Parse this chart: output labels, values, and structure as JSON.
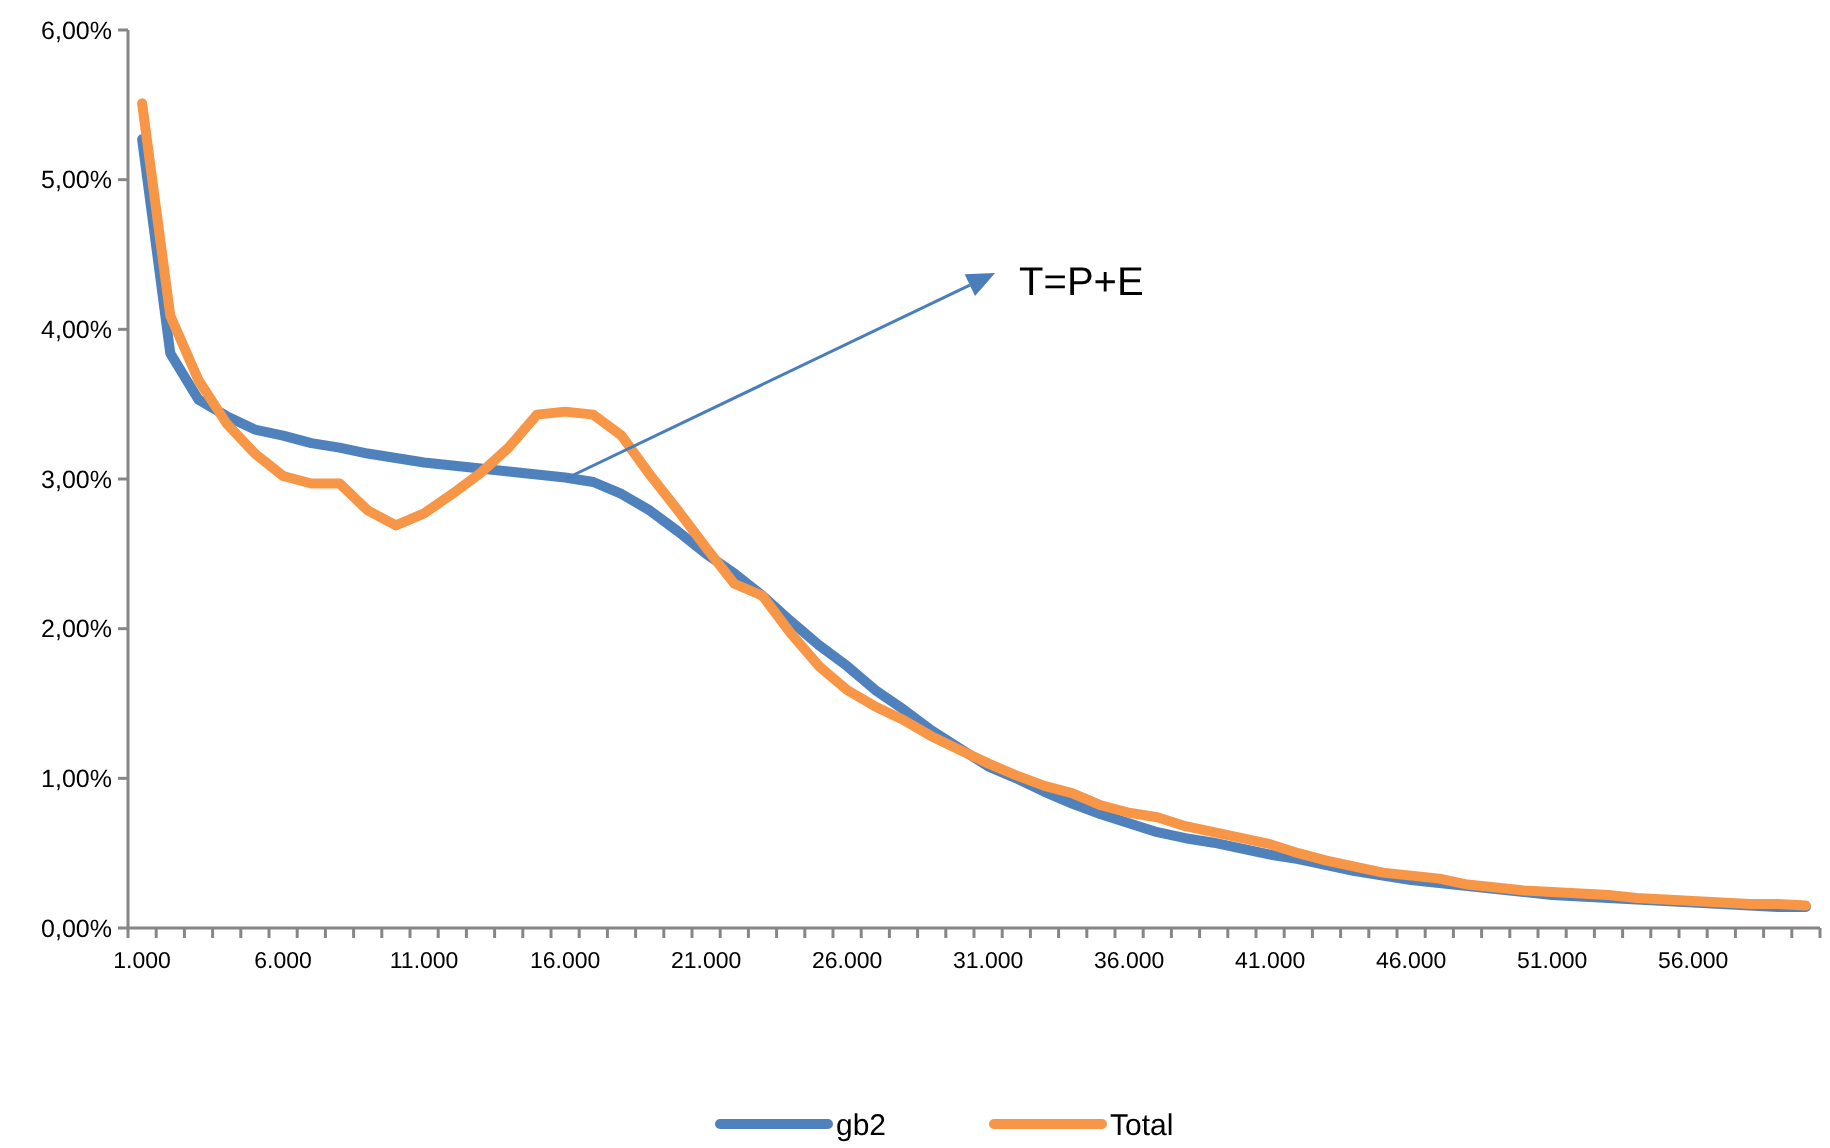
{
  "chart_data": {
    "type": "line",
    "categories": [
      "1.000",
      null,
      null,
      null,
      null,
      "6.000",
      null,
      null,
      null,
      null,
      "11.000",
      null,
      null,
      null,
      null,
      "16.000",
      null,
      null,
      null,
      null,
      "21.000",
      null,
      null,
      null,
      null,
      "26.000",
      null,
      null,
      null,
      null,
      "31.000",
      null,
      null,
      null,
      null,
      "36.000",
      null,
      null,
      null,
      null,
      "41.000",
      null,
      null,
      null,
      null,
      "46.000",
      null,
      null,
      null,
      null,
      "51.000",
      null,
      null,
      null,
      null,
      "56.000",
      null,
      null,
      null,
      null
    ],
    "series": [
      {
        "name": "gb2",
        "color": "#4f81bd",
        "values": [
          5.27,
          3.84,
          3.53,
          3.42,
          3.33,
          3.29,
          3.24,
          3.21,
          3.17,
          3.14,
          3.11,
          3.09,
          3.07,
          3.05,
          3.03,
          3.01,
          2.98,
          2.9,
          2.79,
          2.65,
          2.5,
          2.37,
          2.22,
          2.05,
          1.89,
          1.75,
          1.59,
          1.46,
          1.32,
          1.2,
          1.08,
          1.0,
          0.91,
          0.83,
          0.76,
          0.7,
          0.64,
          0.6,
          0.57,
          0.53,
          0.49,
          0.46,
          0.42,
          0.38,
          0.35,
          0.32,
          0.3,
          0.28,
          0.26,
          0.24,
          0.22,
          0.21,
          0.2,
          0.19,
          0.18,
          0.17,
          0.16,
          0.15,
          0.14,
          0.14
        ]
      },
      {
        "name": "Total",
        "color": "#f79646",
        "values": [
          5.51,
          4.09,
          3.66,
          3.37,
          3.17,
          3.02,
          2.97,
          2.97,
          2.79,
          2.69,
          2.77,
          2.9,
          3.04,
          3.21,
          3.43,
          3.45,
          3.43,
          3.29,
          3.03,
          2.79,
          2.54,
          2.3,
          2.22,
          1.97,
          1.75,
          1.59,
          1.48,
          1.39,
          1.28,
          1.19,
          1.1,
          1.02,
          0.95,
          0.9,
          0.82,
          0.77,
          0.74,
          0.68,
          0.64,
          0.6,
          0.56,
          0.5,
          0.45,
          0.41,
          0.37,
          0.35,
          0.33,
          0.29,
          0.27,
          0.25,
          0.24,
          0.23,
          0.22,
          0.2,
          0.19,
          0.18,
          0.17,
          0.16,
          0.16,
          0.15
        ]
      }
    ],
    "ylim": [
      0,
      6
    ],
    "yticks": [
      {
        "value": 0,
        "label": "0,00%"
      },
      {
        "value": 1,
        "label": "1,00%"
      },
      {
        "value": 2,
        "label": "2,00%"
      },
      {
        "value": 3,
        "label": "3,00%"
      },
      {
        "value": 4,
        "label": "4,00%"
      },
      {
        "value": 5,
        "label": "5,00%"
      },
      {
        "value": 6,
        "label": "6,00%"
      }
    ],
    "annotations": [
      {
        "text": "T=P+E",
        "x": "16.000",
        "y": 3.0
      }
    ],
    "grid": false,
    "legend": "bottom",
    "marker": "none",
    "line_style": "solid"
  }
}
